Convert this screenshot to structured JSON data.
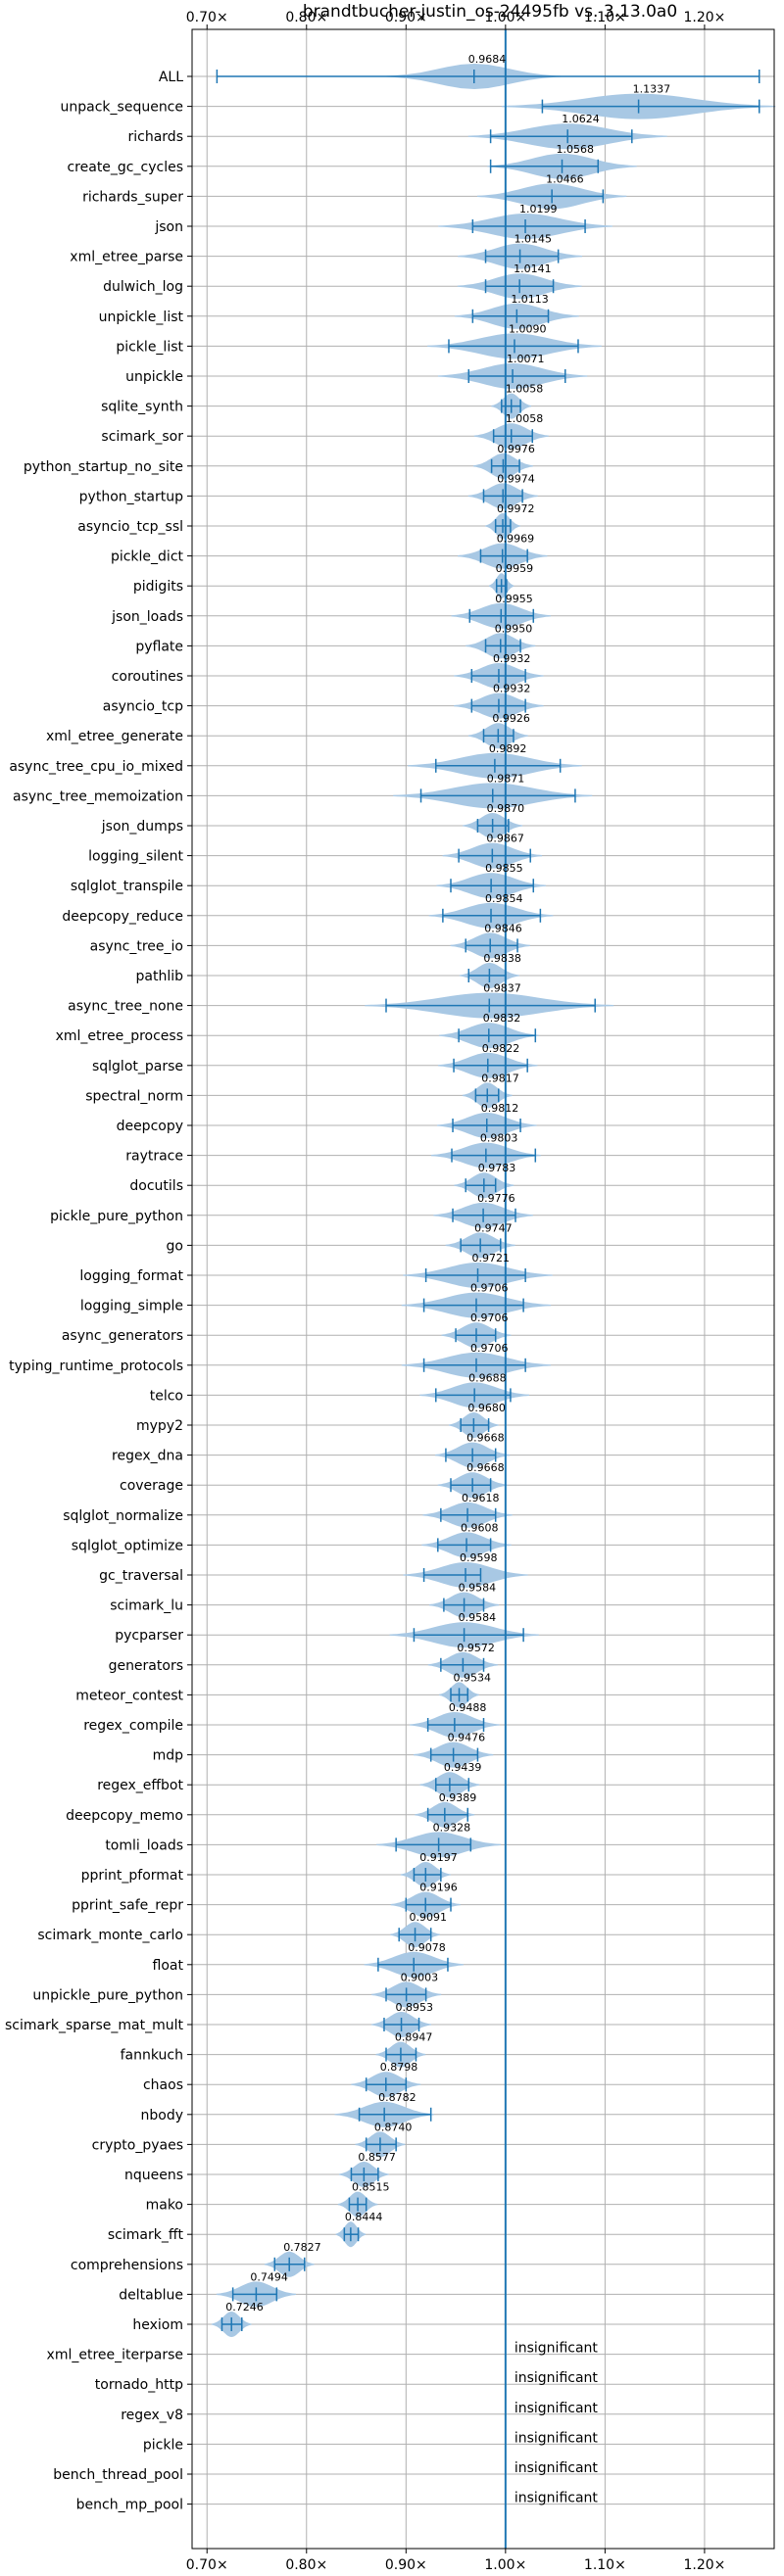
{
  "chart_data": {
    "type": "violin",
    "title": "brandtbucher-justin_os-24495fb vs. 3.13.0a0",
    "xlim": [
      0.685,
      1.27
    ],
    "xticks": [
      0.7,
      0.8,
      0.9,
      1.0,
      1.1,
      1.2
    ],
    "xtick_labels": [
      "0.70×",
      "0.80×",
      "0.90×",
      "1.00×",
      "1.10×",
      "1.20×"
    ],
    "reference_line": 1.0,
    "grid": true,
    "colors": {
      "violin_fill": "#a8c8e4",
      "whisker": "#1f77b4",
      "grid": "#b0b0b0"
    },
    "insignificant_text": "insignificant",
    "benchmarks": [
      {
        "name": "ALL",
        "median": 0.9684,
        "median_label": "0.9684",
        "min": 0.71,
        "max": 1.255,
        "spread": 0.035
      },
      {
        "name": "unpack_sequence",
        "median": 1.1337,
        "median_label": "1.1337",
        "min": 1.037,
        "max": 1.255,
        "spread": 0.055
      },
      {
        "name": "richards",
        "median": 1.0624,
        "median_label": "1.0624",
        "min": 0.985,
        "max": 1.127,
        "spread": 0.04
      },
      {
        "name": "create_gc_cycles",
        "median": 1.0568,
        "median_label": "1.0568",
        "min": 0.985,
        "max": 1.093,
        "spread": 0.03
      },
      {
        "name": "richards_super",
        "median": 1.0466,
        "median_label": "1.0466",
        "min": 1.0,
        "max": 1.098,
        "spread": 0.03
      },
      {
        "name": "json",
        "median": 1.0199,
        "median_label": "1.0199",
        "min": 0.967,
        "max": 1.08,
        "spread": 0.035
      },
      {
        "name": "xml_etree_parse",
        "median": 1.0145,
        "median_label": "1.0145",
        "min": 0.98,
        "max": 1.053,
        "spread": 0.025
      },
      {
        "name": "dulwich_log",
        "median": 1.0141,
        "median_label": "1.0141",
        "min": 0.98,
        "max": 1.048,
        "spread": 0.025
      },
      {
        "name": "unpickle_list",
        "median": 1.0113,
        "median_label": "1.0113",
        "min": 0.967,
        "max": 1.043,
        "spread": 0.025
      },
      {
        "name": "pickle_list",
        "median": 1.009,
        "median_label": "1.0090",
        "min": 0.943,
        "max": 1.073,
        "spread": 0.035
      },
      {
        "name": "unpickle",
        "median": 1.0071,
        "median_label": "1.0071",
        "min": 0.963,
        "max": 1.06,
        "spread": 0.03
      },
      {
        "name": "sqlite_synth",
        "median": 1.0058,
        "median_label": "1.0058",
        "min": 0.996,
        "max": 1.015,
        "spread": 0.008
      },
      {
        "name": "scimark_sor",
        "median": 1.0058,
        "median_label": "1.0058",
        "min": 0.988,
        "max": 1.027,
        "spread": 0.015
      },
      {
        "name": "python_startup_no_site",
        "median": 0.9976,
        "median_label": "0.9976",
        "min": 0.986,
        "max": 1.014,
        "spread": 0.012
      },
      {
        "name": "python_startup",
        "median": 0.9974,
        "median_label": "0.9974",
        "min": 0.978,
        "max": 1.017,
        "spread": 0.014
      },
      {
        "name": "asyncio_tcp_ssl",
        "median": 0.9972,
        "median_label": "0.9972",
        "min": 0.99,
        "max": 1.005,
        "spread": 0.007
      },
      {
        "name": "pickle_dict",
        "median": 0.9969,
        "median_label": "0.9969",
        "min": 0.975,
        "max": 1.022,
        "spread": 0.018
      },
      {
        "name": "pidigits",
        "median": 0.9959,
        "median_label": "0.9959",
        "min": 0.991,
        "max": 1.001,
        "spread": 0.005
      },
      {
        "name": "json_loads",
        "median": 0.9955,
        "median_label": "0.9955",
        "min": 0.964,
        "max": 1.028,
        "spread": 0.02
      },
      {
        "name": "pyflate",
        "median": 0.995,
        "median_label": "0.9950",
        "min": 0.98,
        "max": 1.015,
        "spread": 0.014
      },
      {
        "name": "coroutines",
        "median": 0.9932,
        "median_label": "0.9932",
        "min": 0.966,
        "max": 1.02,
        "spread": 0.018
      },
      {
        "name": "asyncio_tcp",
        "median": 0.9932,
        "median_label": "0.9932",
        "min": 0.966,
        "max": 1.02,
        "spread": 0.018
      },
      {
        "name": "xml_etree_generate",
        "median": 0.9926,
        "median_label": "0.9926",
        "min": 0.978,
        "max": 1.008,
        "spread": 0.012
      },
      {
        "name": "async_tree_cpu_io_mixed",
        "median": 0.9892,
        "median_label": "0.9892",
        "min": 0.93,
        "max": 1.055,
        "spread": 0.035
      },
      {
        "name": "async_tree_memoization",
        "median": 0.9871,
        "median_label": "0.9871",
        "min": 0.915,
        "max": 1.07,
        "spread": 0.04
      },
      {
        "name": "json_dumps",
        "median": 0.987,
        "median_label": "0.9870",
        "min": 0.972,
        "max": 1.003,
        "spread": 0.012
      },
      {
        "name": "logging_silent",
        "median": 0.9867,
        "median_label": "0.9867",
        "min": 0.953,
        "max": 1.025,
        "spread": 0.02
      },
      {
        "name": "sqlglot_transpile",
        "median": 0.9855,
        "median_label": "0.9855",
        "min": 0.945,
        "max": 1.028,
        "spread": 0.022
      },
      {
        "name": "deepcopy_reduce",
        "median": 0.9854,
        "median_label": "0.9854",
        "min": 0.937,
        "max": 1.035,
        "spread": 0.025
      },
      {
        "name": "async_tree_io",
        "median": 0.9846,
        "median_label": "0.9846",
        "min": 0.96,
        "max": 1.012,
        "spread": 0.016
      },
      {
        "name": "pathlib",
        "median": 0.9838,
        "median_label": "0.9838",
        "min": 0.963,
        "max": 1.0,
        "spread": 0.012
      },
      {
        "name": "async_tree_none",
        "median": 0.9837,
        "median_label": "0.9837",
        "min": 0.88,
        "max": 1.09,
        "spread": 0.05
      },
      {
        "name": "xml_etree_process",
        "median": 0.9832,
        "median_label": "0.9832",
        "min": 0.953,
        "max": 1.03,
        "spread": 0.02
      },
      {
        "name": "sqlglot_parse",
        "median": 0.9822,
        "median_label": "0.9822",
        "min": 0.948,
        "max": 1.022,
        "spread": 0.02
      },
      {
        "name": "spectral_norm",
        "median": 0.9817,
        "median_label": "0.9817",
        "min": 0.97,
        "max": 0.993,
        "spread": 0.01
      },
      {
        "name": "deepcopy",
        "median": 0.9812,
        "median_label": "0.9812",
        "min": 0.947,
        "max": 1.015,
        "spread": 0.02
      },
      {
        "name": "raytrace",
        "median": 0.9803,
        "median_label": "0.9803",
        "min": 0.946,
        "max": 1.03,
        "spread": 0.022
      },
      {
        "name": "docutils",
        "median": 0.9783,
        "median_label": "0.9783",
        "min": 0.96,
        "max": 0.99,
        "spread": 0.012
      },
      {
        "name": "pickle_pure_python",
        "median": 0.9776,
        "median_label": "0.9776",
        "min": 0.947,
        "max": 1.01,
        "spread": 0.02
      },
      {
        "name": "go",
        "median": 0.9747,
        "median_label": "0.9747",
        "min": 0.955,
        "max": 0.995,
        "spread": 0.014
      },
      {
        "name": "logging_format",
        "median": 0.9721,
        "median_label": "0.9721",
        "min": 0.92,
        "max": 1.02,
        "spread": 0.03
      },
      {
        "name": "logging_simple",
        "median": 0.9706,
        "median_label": "0.9706",
        "min": 0.918,
        "max": 1.018,
        "spread": 0.03
      },
      {
        "name": "async_generators",
        "median": 0.9706,
        "median_label": "0.9706",
        "min": 0.95,
        "max": 0.99,
        "spread": 0.014
      },
      {
        "name": "typing_runtime_protocols",
        "median": 0.9706,
        "median_label": "0.9706",
        "min": 0.918,
        "max": 1.02,
        "spread": 0.03
      },
      {
        "name": "telco",
        "median": 0.9688,
        "median_label": "0.9688",
        "min": 0.93,
        "max": 1.005,
        "spread": 0.022
      },
      {
        "name": "mypy2",
        "median": 0.968,
        "median_label": "0.9680",
        "min": 0.955,
        "max": 0.983,
        "spread": 0.01
      },
      {
        "name": "regex_dna",
        "median": 0.9668,
        "median_label": "0.9668",
        "min": 0.94,
        "max": 0.99,
        "spread": 0.015
      },
      {
        "name": "coverage",
        "median": 0.9668,
        "median_label": "0.9668",
        "min": 0.945,
        "max": 0.985,
        "spread": 0.014
      },
      {
        "name": "sqlglot_normalize",
        "median": 0.9618,
        "median_label": "0.9618",
        "min": 0.935,
        "max": 0.99,
        "spread": 0.018
      },
      {
        "name": "sqlglot_optimize",
        "median": 0.9608,
        "median_label": "0.9608",
        "min": 0.932,
        "max": 0.985,
        "spread": 0.018
      },
      {
        "name": "gc_traversal",
        "median": 0.9598,
        "median_label": "0.9598",
        "min": 0.918,
        "max": 0.975,
        "spread": 0.025
      },
      {
        "name": "scimark_lu",
        "median": 0.9584,
        "median_label": "0.9584",
        "min": 0.938,
        "max": 0.978,
        "spread": 0.014
      },
      {
        "name": "pycparser",
        "median": 0.9584,
        "median_label": "0.9584",
        "min": 0.908,
        "max": 1.018,
        "spread": 0.03
      },
      {
        "name": "generators",
        "median": 0.9572,
        "median_label": "0.9572",
        "min": 0.935,
        "max": 0.978,
        "spread": 0.014
      },
      {
        "name": "meteor_contest",
        "median": 0.9534,
        "median_label": "0.9534",
        "min": 0.945,
        "max": 0.962,
        "spread": 0.008
      },
      {
        "name": "regex_compile",
        "median": 0.9488,
        "median_label": "0.9488",
        "min": 0.922,
        "max": 0.978,
        "spread": 0.018
      },
      {
        "name": "mdp",
        "median": 0.9476,
        "median_label": "0.9476",
        "min": 0.925,
        "max": 0.972,
        "spread": 0.016
      },
      {
        "name": "regex_effbot",
        "median": 0.9439,
        "median_label": "0.9439",
        "min": 0.93,
        "max": 0.963,
        "spread": 0.012
      },
      {
        "name": "deepcopy_memo",
        "median": 0.9389,
        "median_label": "0.9389",
        "min": 0.922,
        "max": 0.962,
        "spread": 0.012
      },
      {
        "name": "tomli_loads",
        "median": 0.9328,
        "median_label": "0.9328",
        "min": 0.89,
        "max": 0.965,
        "spread": 0.025
      },
      {
        "name": "pprint_pformat",
        "median": 0.9197,
        "median_label": "0.9197",
        "min": 0.908,
        "max": 0.935,
        "spread": 0.01
      },
      {
        "name": "pprint_safe_repr",
        "median": 0.9196,
        "median_label": "0.9196",
        "min": 0.9,
        "max": 0.945,
        "spread": 0.014
      },
      {
        "name": "scimark_monte_carlo",
        "median": 0.9091,
        "median_label": "0.9091",
        "min": 0.893,
        "max": 0.925,
        "spread": 0.01
      },
      {
        "name": "float",
        "median": 0.9078,
        "median_label": "0.9078",
        "min": 0.872,
        "max": 0.942,
        "spread": 0.02
      },
      {
        "name": "unpickle_pure_python",
        "median": 0.9003,
        "median_label": "0.9003",
        "min": 0.88,
        "max": 0.92,
        "spread": 0.014
      },
      {
        "name": "scimark_sparse_mat_mult",
        "median": 0.8953,
        "median_label": "0.8953",
        "min": 0.878,
        "max": 0.913,
        "spread": 0.012
      },
      {
        "name": "fannkuch",
        "median": 0.8947,
        "median_label": "0.8947",
        "min": 0.88,
        "max": 0.91,
        "spread": 0.01
      },
      {
        "name": "chaos",
        "median": 0.8798,
        "median_label": "0.8798",
        "min": 0.86,
        "max": 0.9,
        "spread": 0.014
      },
      {
        "name": "nbody",
        "median": 0.8782,
        "median_label": "0.8782",
        "min": 0.853,
        "max": 0.925,
        "spread": 0.02
      },
      {
        "name": "crypto_pyaes",
        "median": 0.874,
        "median_label": "0.8740",
        "min": 0.86,
        "max": 0.89,
        "spread": 0.01
      },
      {
        "name": "nqueens",
        "median": 0.8577,
        "median_label": "0.8577",
        "min": 0.845,
        "max": 0.872,
        "spread": 0.01
      },
      {
        "name": "mako",
        "median": 0.8515,
        "median_label": "0.8515",
        "min": 0.843,
        "max": 0.86,
        "spread": 0.008
      },
      {
        "name": "scimark_fft",
        "median": 0.8444,
        "median_label": "0.8444",
        "min": 0.838,
        "max": 0.852,
        "spread": 0.006
      },
      {
        "name": "comprehensions",
        "median": 0.7827,
        "median_label": "0.7827",
        "min": 0.768,
        "max": 0.798,
        "spread": 0.01
      },
      {
        "name": "deltablue",
        "median": 0.7494,
        "median_label": "0.7494",
        "min": 0.726,
        "max": 0.77,
        "spread": 0.016
      },
      {
        "name": "hexiom",
        "median": 0.7246,
        "median_label": "0.7246",
        "min": 0.715,
        "max": 0.735,
        "spread": 0.008
      },
      {
        "name": "xml_etree_iterparse",
        "insignificant": true
      },
      {
        "name": "tornado_http",
        "insignificant": true
      },
      {
        "name": "regex_v8",
        "insignificant": true
      },
      {
        "name": "pickle",
        "insignificant": true
      },
      {
        "name": "bench_thread_pool",
        "insignificant": true
      },
      {
        "name": "bench_mp_pool",
        "insignificant": true
      }
    ]
  }
}
